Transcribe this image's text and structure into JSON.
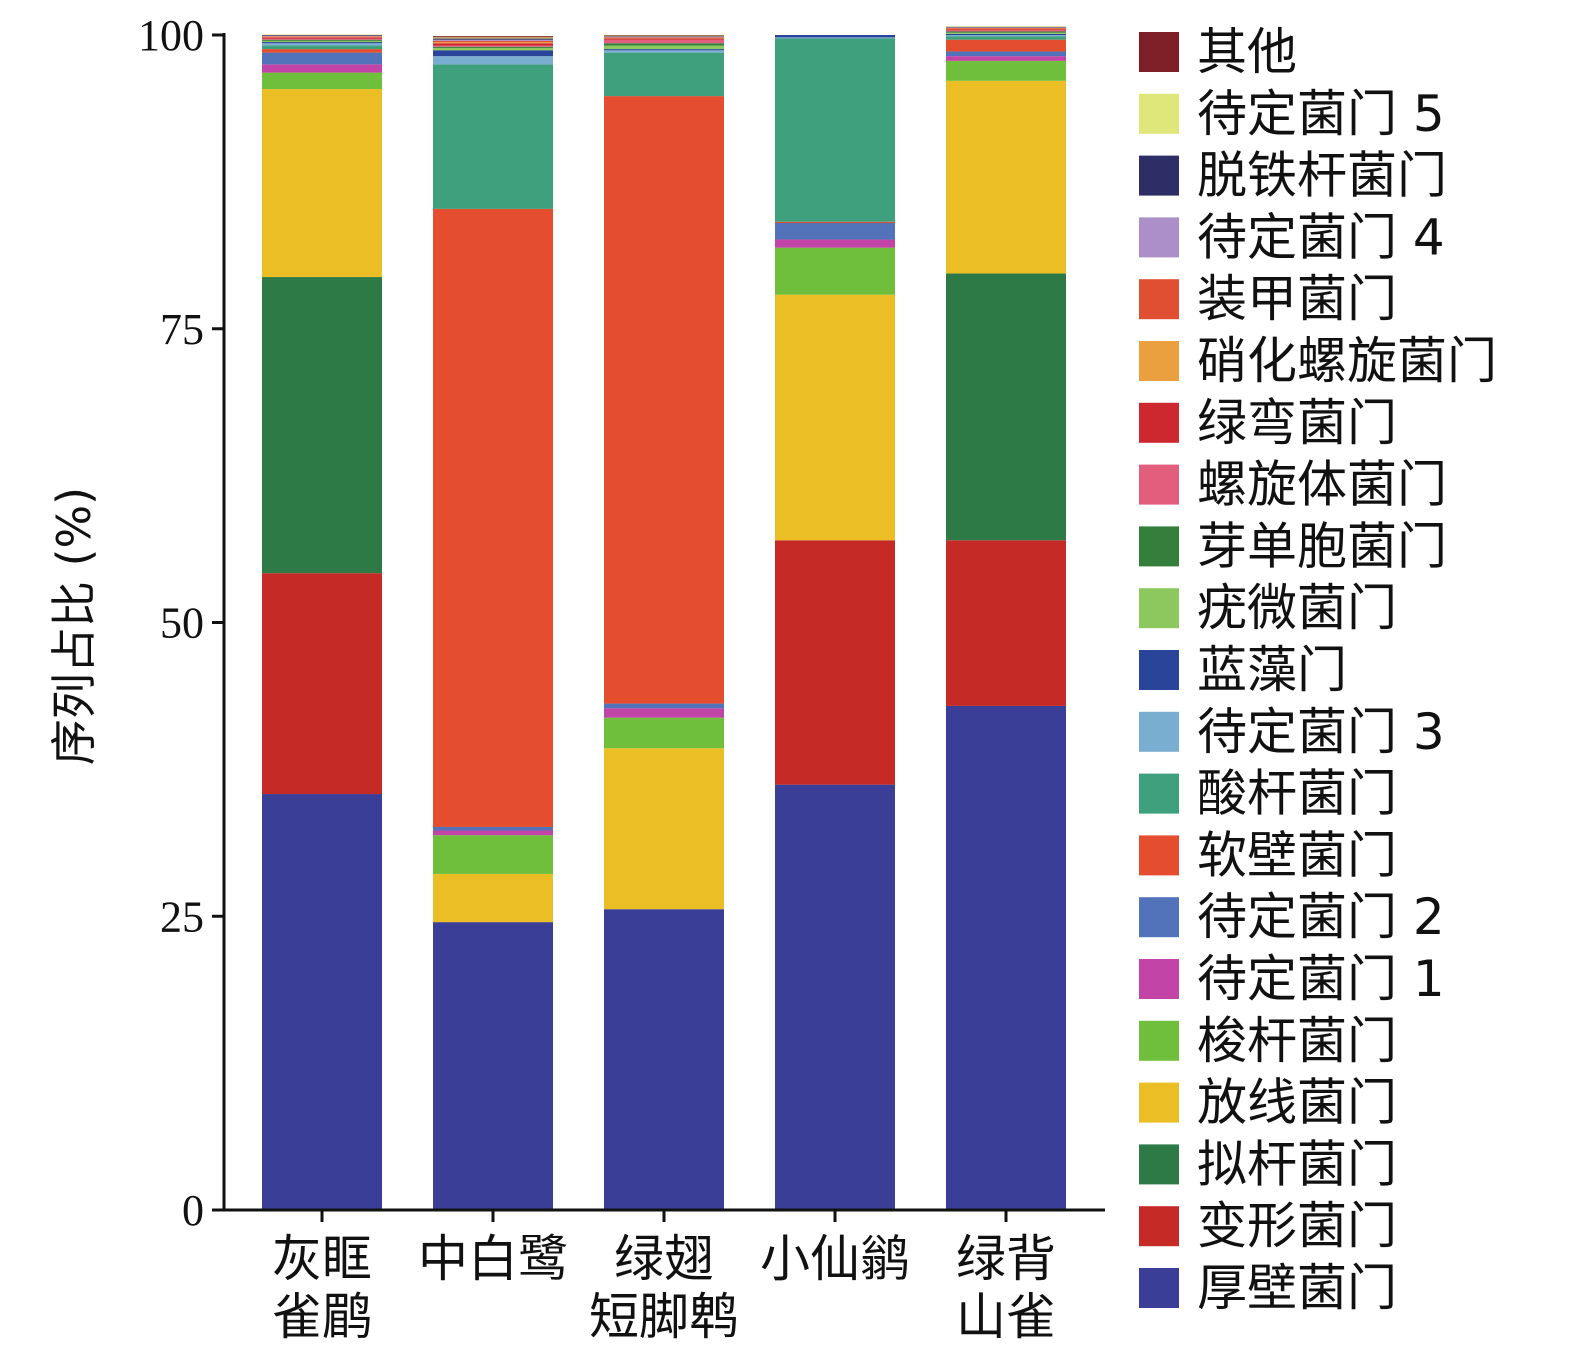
{
  "chart_data": {
    "type": "bar",
    "stacked": true,
    "xlabel": "",
    "ylabel": "序列占比 (%)",
    "ylim": [
      0,
      100
    ],
    "yticks": [
      0,
      25,
      50,
      75,
      100
    ],
    "legend_position": "right",
    "categories": [
      [
        "灰眶",
        "雀鹛"
      ],
      [
        "中白鹭"
      ],
      [
        "绿翅",
        "短脚鹎"
      ],
      [
        "小仙鹟"
      ],
      [
        "绿背",
        "山雀"
      ]
    ],
    "series": [
      {
        "name": "厚壁菌门",
        "color": "#3a3e96",
        "values": [
          35.4,
          24.5,
          25.6,
          36.2,
          42.9
        ]
      },
      {
        "name": "变形菌门",
        "color": "#c62a27",
        "values": [
          18.8,
          0,
          0,
          20.8,
          14.1
        ]
      },
      {
        "name": "拟杆菌门",
        "color": "#2e7a46",
        "values": [
          25.2,
          0,
          0,
          0,
          22.7
        ]
      },
      {
        "name": "放线菌门",
        "color": "#ecbe26",
        "values": [
          16.0,
          4.1,
          13.7,
          20.9,
          16.4
        ]
      },
      {
        "name": "梭杆菌门",
        "color": "#6fbf3c",
        "values": [
          1.4,
          3.3,
          2.6,
          4.0,
          1.7
        ]
      },
      {
        "name": "待定菌门 1",
        "color": "#c244a6",
        "values": [
          0.7,
          0.4,
          0.8,
          0.7,
          0.4
        ]
      },
      {
        "name": "待定菌门 2",
        "color": "#5273b9",
        "values": [
          1.0,
          0.3,
          0.4,
          1.4,
          0.4
        ]
      },
      {
        "name": "软壁菌门",
        "color": "#e44d2e",
        "values": [
          0.3,
          52.6,
          51.7,
          0.1,
          1.0
        ]
      },
      {
        "name": "酸杆菌门",
        "color": "#3ea07c",
        "values": [
          0.3,
          12.3,
          3.7,
          15.6,
          0.3
        ]
      },
      {
        "name": "待定菌门 3",
        "color": "#7aaed0",
        "values": [
          0.2,
          0.7,
          0.2,
          0.1,
          0.1
        ]
      },
      {
        "name": "蓝藻门",
        "color": "#2a449a",
        "values": [
          0.1,
          0.5,
          0.1,
          0.2,
          0.1
        ]
      },
      {
        "name": "疣微菌门",
        "color": "#8cc85e",
        "values": [
          0.1,
          0.2,
          0.3,
          0,
          0.1
        ]
      },
      {
        "name": "芽单胞菌门",
        "color": "#347e3c",
        "values": [
          0.1,
          0.1,
          0.2,
          0,
          0.1
        ]
      },
      {
        "name": "螺旋体菌门",
        "color": "#e25e7c",
        "values": [
          0.1,
          0.1,
          0.3,
          0,
          0.1
        ]
      },
      {
        "name": "绿弯菌门",
        "color": "#cd2830",
        "values": [
          0.1,
          0.2,
          0.1,
          0,
          0.1
        ]
      },
      {
        "name": "硝化螺旋菌门",
        "color": "#eba040",
        "values": [
          0.05,
          0.1,
          0.05,
          0,
          0.05
        ]
      },
      {
        "name": "装甲菌门",
        "color": "#e04f32",
        "values": [
          0.05,
          0.1,
          0.05,
          0,
          0.05
        ]
      },
      {
        "name": "待定菌门 4",
        "color": "#ac8ec8",
        "values": [
          0.05,
          0.1,
          0.05,
          0,
          0.05
        ]
      },
      {
        "name": "脱铁杆菌门",
        "color": "#2e2e66",
        "values": [
          0.05,
          0.1,
          0.05,
          0,
          0.05
        ]
      },
      {
        "name": "待定菌门 5",
        "color": "#dfe67a",
        "values": [
          0.05,
          0.1,
          0.05,
          0,
          0.05
        ]
      },
      {
        "name": "其他",
        "color": "#7e1e26",
        "values": [
          0.0,
          0.1,
          0.05,
          0,
          0.0
        ]
      }
    ],
    "legend": [
      "其他",
      "待定菌门 5",
      "脱铁杆菌门",
      "待定菌门 4",
      "装甲菌门",
      "硝化螺旋菌门",
      "绿弯菌门",
      "螺旋体菌门",
      "芽单胞菌门",
      "疣微菌门",
      "蓝藻门",
      "待定菌门 3",
      "酸杆菌门",
      "软壁菌门",
      "待定菌门 2",
      "待定菌门 1",
      "梭杆菌门",
      "放线菌门",
      "拟杆菌门",
      "变形菌门",
      "厚壁菌门"
    ]
  }
}
